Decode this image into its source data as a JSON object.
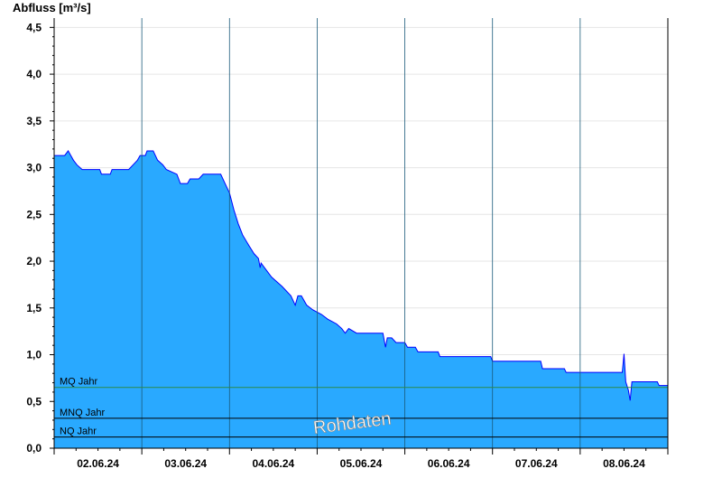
{
  "chart_data": {
    "type": "area",
    "title": "",
    "xlabel": "",
    "ylabel": "Abfluss [m³/s]",
    "ylim": [
      0,
      4.6
    ],
    "yticks": [
      "0,0",
      "0,5",
      "1,0",
      "1,5",
      "2,0",
      "2,5",
      "3,0",
      "3,5",
      "4,0",
      "4,5"
    ],
    "ytick_values": [
      0,
      0.5,
      1.0,
      1.5,
      2.0,
      2.5,
      3.0,
      3.5,
      4.0,
      4.5
    ],
    "xlim_days": [
      0,
      7
    ],
    "x_date_labels": [
      "02.06.24",
      "03.06.24",
      "04.06.24",
      "05.06.24",
      "06.06.24",
      "07.06.24",
      "08.06.24"
    ],
    "grid": true,
    "series": [
      {
        "values": [
          [
            0.0,
            3.13
          ],
          [
            0.12,
            3.13
          ],
          [
            0.16,
            3.18
          ],
          [
            0.22,
            3.08
          ],
          [
            0.26,
            3.03
          ],
          [
            0.32,
            2.98
          ],
          [
            0.52,
            2.98
          ],
          [
            0.54,
            2.93
          ],
          [
            0.64,
            2.93
          ],
          [
            0.66,
            2.98
          ],
          [
            0.85,
            2.98
          ],
          [
            0.9,
            3.03
          ],
          [
            0.95,
            3.08
          ],
          [
            0.98,
            3.13
          ],
          [
            1.04,
            3.13
          ],
          [
            1.06,
            3.18
          ],
          [
            1.13,
            3.18
          ],
          [
            1.18,
            3.08
          ],
          [
            1.24,
            3.03
          ],
          [
            1.28,
            2.98
          ],
          [
            1.4,
            2.93
          ],
          [
            1.44,
            2.83
          ],
          [
            1.52,
            2.83
          ],
          [
            1.55,
            2.88
          ],
          [
            1.65,
            2.88
          ],
          [
            1.7,
            2.93
          ],
          [
            1.9,
            2.93
          ],
          [
            1.95,
            2.83
          ],
          [
            2.0,
            2.73
          ],
          [
            2.05,
            2.55
          ],
          [
            2.1,
            2.4
          ],
          [
            2.15,
            2.28
          ],
          [
            2.22,
            2.17
          ],
          [
            2.28,
            2.08
          ],
          [
            2.33,
            2.03
          ],
          [
            2.35,
            1.93
          ],
          [
            2.36,
            1.98
          ],
          [
            2.4,
            1.93
          ],
          [
            2.48,
            1.83
          ],
          [
            2.6,
            1.73
          ],
          [
            2.7,
            1.63
          ],
          [
            2.75,
            1.53
          ],
          [
            2.78,
            1.63
          ],
          [
            2.82,
            1.63
          ],
          [
            2.88,
            1.53
          ],
          [
            2.95,
            1.48
          ],
          [
            3.05,
            1.43
          ],
          [
            3.12,
            1.38
          ],
          [
            3.22,
            1.33
          ],
          [
            3.28,
            1.28
          ],
          [
            3.32,
            1.23
          ],
          [
            3.36,
            1.28
          ],
          [
            3.45,
            1.23
          ],
          [
            3.75,
            1.23
          ],
          [
            3.78,
            1.08
          ],
          [
            3.8,
            1.18
          ],
          [
            3.85,
            1.18
          ],
          [
            3.9,
            1.13
          ],
          [
            4.0,
            1.13
          ],
          [
            4.03,
            1.08
          ],
          [
            4.12,
            1.08
          ],
          [
            4.15,
            1.03
          ],
          [
            4.38,
            1.03
          ],
          [
            4.4,
            0.98
          ],
          [
            4.98,
            0.98
          ],
          [
            5.0,
            0.93
          ],
          [
            5.55,
            0.93
          ],
          [
            5.57,
            0.85
          ],
          [
            5.82,
            0.85
          ],
          [
            5.84,
            0.81
          ],
          [
            6.48,
            0.81
          ],
          [
            6.5,
            1.01
          ],
          [
            6.52,
            0.71
          ],
          [
            6.55,
            0.62
          ],
          [
            6.57,
            0.51
          ],
          [
            6.59,
            0.71
          ],
          [
            6.88,
            0.71
          ],
          [
            6.9,
            0.67
          ],
          [
            7.0,
            0.67
          ]
        ],
        "color": "#29a9ff",
        "line_color": "#0000ff"
      }
    ],
    "reference_lines": [
      {
        "label": "MQ Jahr",
        "value": 0.65,
        "color": "#2a8a4a"
      },
      {
        "label": "MNQ Jahr",
        "value": 0.32,
        "color": "#000000"
      },
      {
        "label": "NQ Jahr",
        "value": 0.12,
        "color": "#000000"
      }
    ],
    "watermark": "Rohdaten"
  }
}
